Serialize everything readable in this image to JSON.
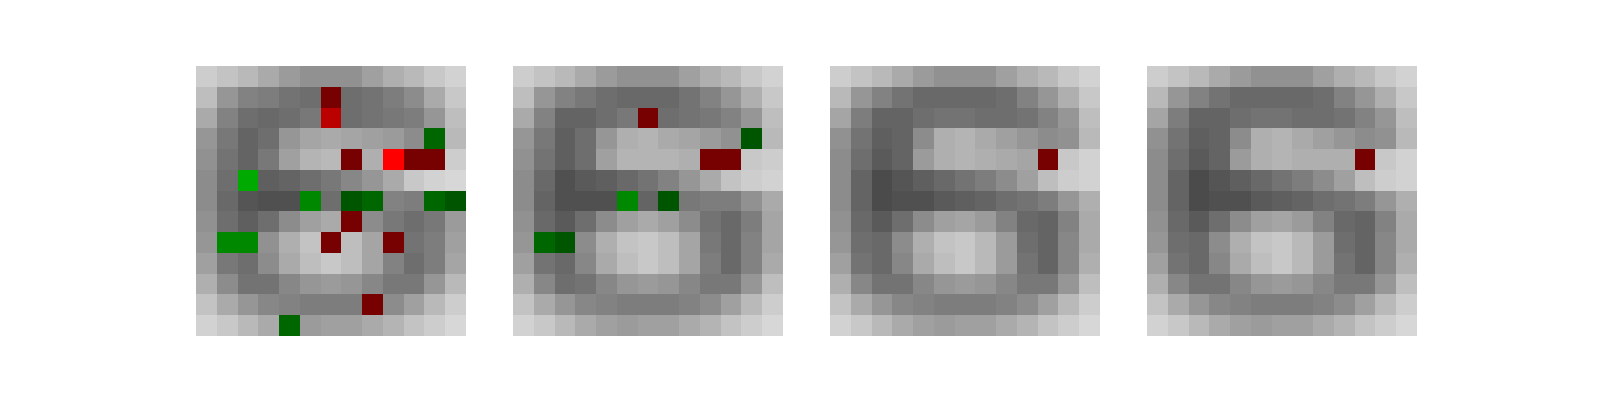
{
  "chart_data": {
    "type": "heatmap",
    "grid": "off",
    "axes": "off",
    "rows": 13,
    "cols": 13,
    "colors": {
      "positive_light": "#ff0000",
      "positive_mid": "#bb0000",
      "positive_dark": "#770000",
      "positive_darkest": "#660000",
      "negative_light": "#00aa00",
      "negative_mid": "#008800",
      "negative_dark": "#006600",
      "negative_darkest": "#005500"
    },
    "panels": [
      {
        "base": [
          [
            205,
            195,
            185,
            170,
            155,
            145,
            145,
            145,
            160,
            175,
            185,
            200,
            210
          ],
          [
            190,
            150,
            130,
            125,
            115,
            110,
            105,
            110,
            115,
            125,
            140,
            170,
            200
          ],
          [
            170,
            130,
            110,
            105,
            110,
            120,
            115,
            110,
            115,
            120,
            125,
            150,
            190
          ],
          [
            150,
            120,
            100,
            110,
            150,
            165,
            170,
            165,
            160,
            155,
            140,
            140,
            185
          ],
          [
            145,
            115,
            100,
            120,
            160,
            180,
            185,
            185,
            175,
            160,
            150,
            150,
            205
          ],
          [
            140,
            110,
            90,
            95,
            100,
            110,
            120,
            135,
            150,
            170,
            200,
            210,
            215
          ],
          [
            140,
            105,
            85,
            80,
            80,
            95,
            110,
            120,
            130,
            130,
            125,
            135,
            160
          ],
          [
            145,
            110,
            95,
            110,
            140,
            160,
            170,
            160,
            140,
            120,
            110,
            120,
            155
          ],
          [
            150,
            115,
            110,
            145,
            175,
            195,
            200,
            190,
            165,
            130,
            115,
            125,
            160
          ],
          [
            160,
            120,
            110,
            140,
            170,
            190,
            200,
            190,
            165,
            130,
            110,
            125,
            165
          ],
          [
            175,
            140,
            115,
            115,
            135,
            150,
            155,
            150,
            135,
            120,
            120,
            150,
            185
          ],
          [
            195,
            170,
            150,
            135,
            130,
            125,
            125,
            125,
            130,
            140,
            160,
            185,
            205
          ],
          [
            210,
            200,
            185,
            170,
            160,
            155,
            160,
            160,
            170,
            180,
            195,
            205,
            215
          ]
        ],
        "marks": [
          {
            "r": 1,
            "c": 6,
            "v": 0.8
          },
          {
            "r": 2,
            "c": 6,
            "v": 0.5
          },
          {
            "r": 3,
            "c": 11,
            "v": -0.6
          },
          {
            "r": 4,
            "c": 7,
            "v": 0.8
          },
          {
            "r": 4,
            "c": 9,
            "v": 1.0
          },
          {
            "r": 4,
            "c": 10,
            "v": 0.9
          },
          {
            "r": 4,
            "c": 11,
            "v": 0.8
          },
          {
            "r": 5,
            "c": 2,
            "v": -1.0
          },
          {
            "r": 6,
            "c": 5,
            "v": -0.9
          },
          {
            "r": 6,
            "c": 7,
            "v": -0.8
          },
          {
            "r": 6,
            "c": 8,
            "v": -0.6
          },
          {
            "r": 6,
            "c": 11,
            "v": -0.6
          },
          {
            "r": 6,
            "c": 12,
            "v": -0.8
          },
          {
            "r": 7,
            "c": 7,
            "v": 0.8
          },
          {
            "r": 8,
            "c": 1,
            "v": -0.9
          },
          {
            "r": 8,
            "c": 2,
            "v": -0.9
          },
          {
            "r": 8,
            "c": 6,
            "v": 0.8
          },
          {
            "r": 8,
            "c": 9,
            "v": 0.8
          },
          {
            "r": 11,
            "c": 8,
            "v": 0.8
          },
          {
            "r": 12,
            "c": 4,
            "v": -0.6
          }
        ]
      },
      {
        "base": [
          [
            205,
            195,
            185,
            170,
            155,
            145,
            145,
            145,
            160,
            175,
            185,
            200,
            210
          ],
          [
            190,
            150,
            130,
            120,
            110,
            105,
            105,
            105,
            115,
            130,
            150,
            175,
            200
          ],
          [
            170,
            130,
            100,
            100,
            110,
            120,
            115,
            110,
            115,
            120,
            130,
            150,
            190
          ],
          [
            150,
            120,
            95,
            110,
            150,
            175,
            180,
            170,
            165,
            155,
            145,
            140,
            185
          ],
          [
            145,
            115,
            95,
            110,
            160,
            180,
            180,
            180,
            175,
            160,
            170,
            200,
            205
          ],
          [
            140,
            105,
            80,
            90,
            95,
            105,
            115,
            130,
            150,
            170,
            195,
            205,
            210
          ],
          [
            140,
            100,
            80,
            80,
            80,
            90,
            100,
            110,
            120,
            125,
            125,
            145,
            170
          ],
          [
            145,
            105,
            90,
            110,
            140,
            160,
            170,
            160,
            140,
            115,
            105,
            125,
            165
          ],
          [
            150,
            110,
            105,
            140,
            175,
            195,
            200,
            190,
            165,
            120,
            105,
            130,
            165
          ],
          [
            160,
            115,
            105,
            135,
            170,
            190,
            200,
            190,
            165,
            125,
            105,
            130,
            170
          ],
          [
            175,
            135,
            110,
            115,
            135,
            150,
            155,
            150,
            135,
            120,
            120,
            150,
            190
          ],
          [
            195,
            170,
            150,
            135,
            130,
            125,
            125,
            125,
            130,
            140,
            160,
            185,
            205
          ],
          [
            210,
            200,
            185,
            170,
            160,
            155,
            160,
            160,
            170,
            180,
            195,
            205,
            215
          ]
        ],
        "marks": [
          {
            "r": 2,
            "c": 6,
            "v": 0.8
          },
          {
            "r": 3,
            "c": 11,
            "v": -0.8
          },
          {
            "r": 4,
            "c": 9,
            "v": 0.8
          },
          {
            "r": 4,
            "c": 10,
            "v": 0.8
          },
          {
            "r": 6,
            "c": 5,
            "v": -0.9
          },
          {
            "r": 6,
            "c": 7,
            "v": -0.8
          },
          {
            "r": 8,
            "c": 1,
            "v": -0.6
          },
          {
            "r": 8,
            "c": 2,
            "v": -0.8
          }
        ]
      },
      {
        "base": [
          [
            205,
            195,
            185,
            170,
            155,
            145,
            145,
            145,
            160,
            175,
            185,
            200,
            210
          ],
          [
            185,
            150,
            130,
            115,
            105,
            105,
            105,
            105,
            110,
            130,
            150,
            175,
            200
          ],
          [
            165,
            125,
            100,
            100,
            110,
            115,
            115,
            110,
            110,
            115,
            130,
            150,
            190
          ],
          [
            145,
            115,
            95,
            100,
            140,
            175,
            180,
            170,
            160,
            150,
            140,
            145,
            185
          ],
          [
            140,
            110,
            90,
            100,
            155,
            175,
            180,
            175,
            170,
            165,
            170,
            200,
            210
          ],
          [
            140,
            100,
            75,
            85,
            95,
            105,
            115,
            125,
            140,
            160,
            190,
            205,
            210
          ],
          [
            140,
            100,
            75,
            80,
            80,
            90,
            95,
            100,
            110,
            115,
            125,
            150,
            175
          ],
          [
            145,
            105,
            90,
            110,
            140,
            160,
            165,
            155,
            130,
            105,
            100,
            130,
            170
          ],
          [
            150,
            110,
            105,
            140,
            175,
            195,
            200,
            185,
            155,
            110,
            100,
            135,
            170
          ],
          [
            160,
            115,
            105,
            135,
            170,
            190,
            200,
            185,
            155,
            115,
            100,
            135,
            175
          ],
          [
            175,
            135,
            115,
            115,
            135,
            150,
            155,
            150,
            135,
            120,
            120,
            150,
            190
          ],
          [
            195,
            170,
            150,
            135,
            130,
            125,
            125,
            125,
            130,
            140,
            160,
            185,
            205
          ],
          [
            210,
            200,
            185,
            170,
            160,
            155,
            160,
            160,
            170,
            180,
            195,
            205,
            215
          ]
        ],
        "marks": [
          {
            "r": 4,
            "c": 10,
            "v": 0.8
          }
        ]
      },
      {
        "base": [
          [
            205,
            195,
            185,
            170,
            155,
            145,
            145,
            145,
            160,
            175,
            185,
            200,
            210
          ],
          [
            185,
            150,
            130,
            115,
            105,
            105,
            105,
            105,
            110,
            130,
            150,
            175,
            200
          ],
          [
            165,
            125,
            100,
            100,
            110,
            115,
            115,
            110,
            110,
            115,
            130,
            150,
            190
          ],
          [
            145,
            115,
            95,
            100,
            140,
            175,
            180,
            170,
            160,
            150,
            140,
            145,
            185
          ],
          [
            140,
            110,
            90,
            100,
            155,
            175,
            180,
            175,
            175,
            175,
            185,
            200,
            210
          ],
          [
            140,
            100,
            75,
            85,
            95,
            105,
            115,
            125,
            140,
            160,
            190,
            205,
            210
          ],
          [
            140,
            100,
            75,
            80,
            80,
            90,
            95,
            100,
            110,
            115,
            125,
            150,
            175
          ],
          [
            145,
            105,
            90,
            110,
            140,
            160,
            165,
            155,
            130,
            105,
            100,
            130,
            170
          ],
          [
            150,
            110,
            105,
            140,
            175,
            195,
            200,
            185,
            155,
            110,
            100,
            135,
            170
          ],
          [
            160,
            115,
            105,
            135,
            170,
            190,
            200,
            185,
            155,
            115,
            100,
            135,
            175
          ],
          [
            175,
            135,
            115,
            115,
            135,
            150,
            155,
            150,
            135,
            120,
            120,
            150,
            190
          ],
          [
            195,
            170,
            150,
            135,
            130,
            125,
            125,
            125,
            130,
            140,
            160,
            185,
            205
          ],
          [
            210,
            200,
            185,
            170,
            160,
            155,
            160,
            160,
            170,
            180,
            195,
            205,
            215
          ]
        ],
        "marks": [
          {
            "r": 4,
            "c": 10,
            "v": 0.8
          }
        ]
      }
    ]
  }
}
